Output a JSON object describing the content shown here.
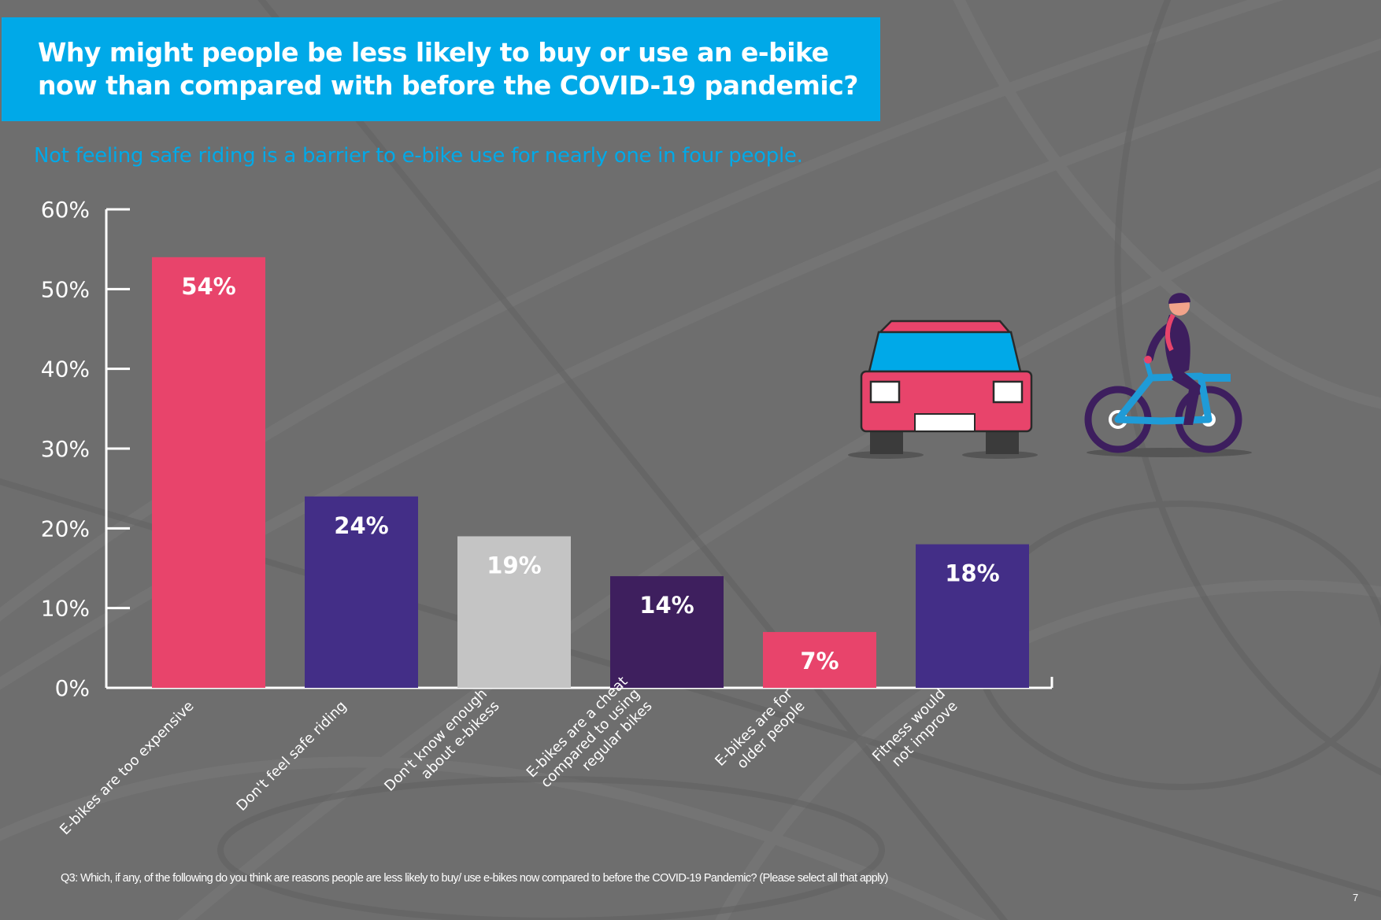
{
  "header": {
    "title_line1": "Why might people be less likely to buy or use an e-bike",
    "title_line2": "now than compared with before the COVID-19 pandemic?",
    "subtitle": "Not feeling safe riding is a barrier to e-bike use for nearly one in four people."
  },
  "chart_data": {
    "type": "bar",
    "categories": [
      [
        "E-bikes are too expensive"
      ],
      [
        "Don't feel safe riding"
      ],
      [
        "Don't know enough",
        "about e-bikess"
      ],
      [
        "E-bikes are a cheat",
        "compared to using",
        "regular bikes"
      ],
      [
        "E-bikes are for",
        "older people"
      ],
      [
        "Fitness would",
        "not improve"
      ]
    ],
    "values": [
      54,
      24,
      19,
      14,
      7,
      18
    ],
    "data_labels": [
      "54%",
      "24%",
      "19%",
      "14%",
      "7%",
      "18%"
    ],
    "bar_colors": [
      "#e8446b",
      "#432e87",
      "#c4c4c4",
      "#3e1f5e",
      "#e8446b",
      "#432e87"
    ],
    "ylim": [
      0,
      60
    ],
    "y_ticks": [
      0,
      10,
      20,
      30,
      40,
      50,
      60
    ],
    "y_tick_labels": [
      "0%",
      "10%",
      "20%",
      "30%",
      "40%",
      "50%",
      "60%"
    ],
    "grid": false,
    "legend": "none"
  },
  "footer": {
    "question": "Q3: Which, if any, of the following do you think are reasons people are less likely to buy/ use e-bikes now compared to before the COVID-19 Pandemic? (Please select all that apply)",
    "page_number": "7"
  },
  "illustration": {
    "icons": [
      "car-icon",
      "cyclist-icon"
    ],
    "colors": {
      "car_body": "#e8446b",
      "car_window": "#00a9e8",
      "bike_frame": "#1f9bd7",
      "wheels": "#3d1e5e"
    }
  }
}
